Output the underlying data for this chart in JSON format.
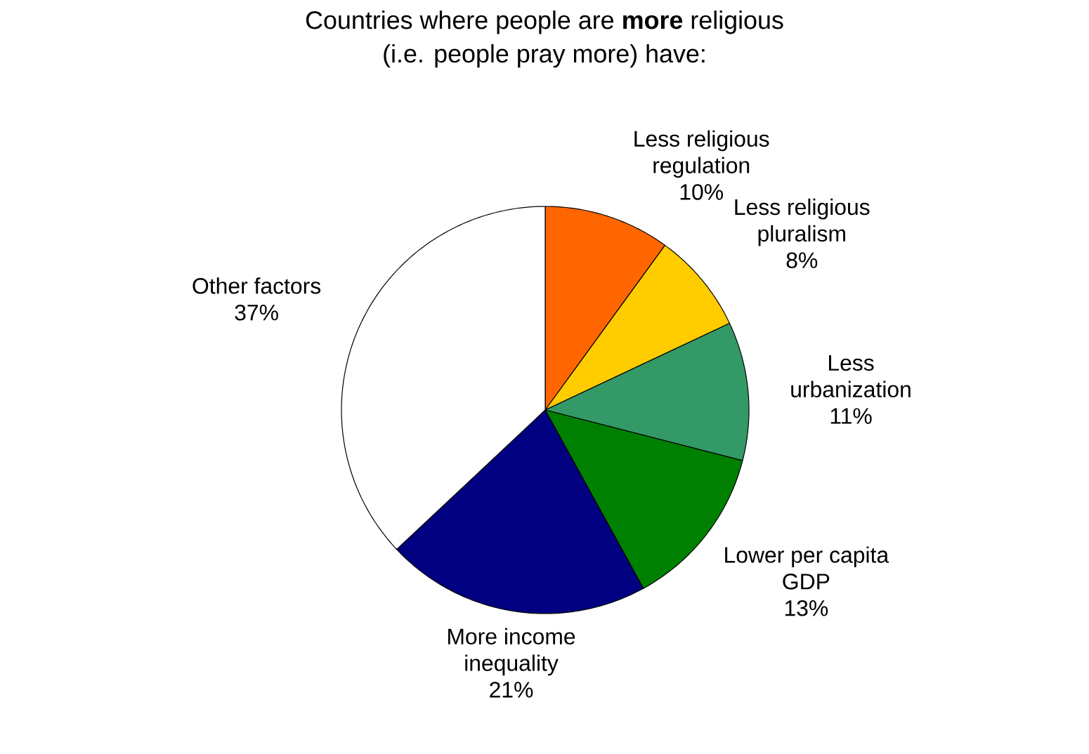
{
  "chart_data": {
    "type": "pie",
    "title": "Countries where people are **more** religious (i.e. people pray more) have:",
    "categories": [
      "Less religious regulation",
      "Less religious pluralism",
      "Less urbanization",
      "Lower per capita GDP",
      "More income inequality",
      "Other factors"
    ],
    "values": [
      10,
      8,
      11,
      13,
      21,
      37
    ],
    "value_labels": [
      "10%",
      "8%",
      "11%",
      "13%",
      "21%",
      "37%"
    ],
    "colors": [
      "#ff6600",
      "#ffcc00",
      "#339966",
      "#008000",
      "#000080",
      "#ffffff"
    ]
  }
}
